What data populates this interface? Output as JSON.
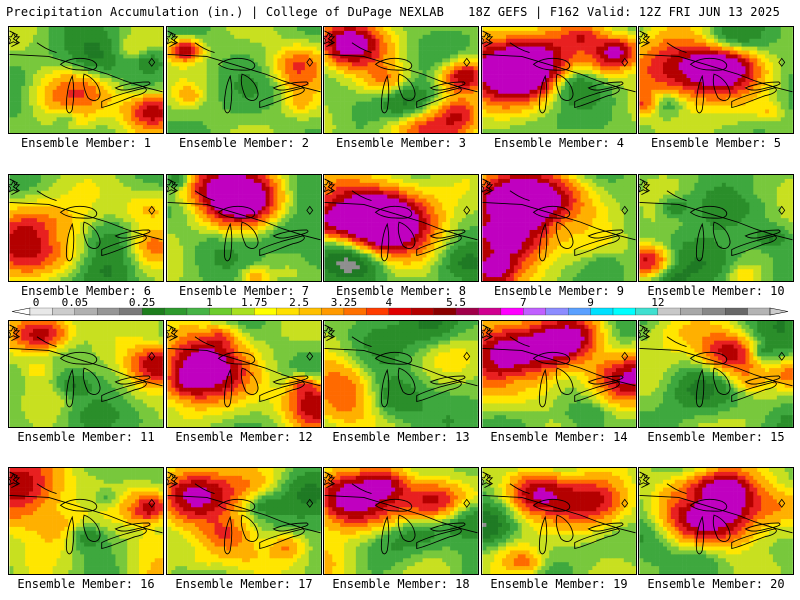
{
  "header": {
    "left_title": "Precipitation Accumulation (in.) | College of DuPage NEXLAB",
    "right_title": "18Z GEFS | F162 Valid: 12Z FRI JUN 13 2025"
  },
  "members": [
    {
      "label": "Ensemble Member: 1",
      "seed": 11,
      "hot": [
        [
          0.92,
          0.78,
          0.18
        ]
      ]
    },
    {
      "label": "Ensemble Member: 2",
      "seed": 23,
      "hot": [
        [
          0.1,
          0.2,
          0.1
        ]
      ]
    },
    {
      "label": "Ensemble Member: 3",
      "seed": 37,
      "hot": [
        [
          0.15,
          0.15,
          0.22
        ],
        [
          0.9,
          0.45,
          0.15
        ]
      ]
    },
    {
      "label": "Ensemble Member: 4",
      "seed": 41,
      "hot": [
        [
          0.1,
          0.4,
          0.35
        ],
        [
          0.3,
          0.35,
          0.25
        ],
        [
          0.85,
          0.2,
          0.15
        ]
      ]
    },
    {
      "label": "Ensemble Member: 5",
      "seed": 53,
      "hot": [
        [
          0.3,
          0.4,
          0.35
        ],
        [
          0.55,
          0.35,
          0.2
        ]
      ]
    },
    {
      "label": "Ensemble Member: 6",
      "seed": 61,
      "hot": [
        [
          0.15,
          0.6,
          0.3
        ]
      ]
    },
    {
      "label": "Ensemble Member: 7",
      "seed": 71,
      "hot": [
        [
          0.3,
          0.18,
          0.3
        ],
        [
          0.55,
          0.2,
          0.25
        ]
      ]
    },
    {
      "label": "Ensemble Member: 8",
      "seed": 83,
      "hot": [
        [
          0.25,
          0.4,
          0.35
        ],
        [
          0.4,
          0.45,
          0.3
        ]
      ]
    },
    {
      "label": "Ensemble Member: 9",
      "seed": 97,
      "hot": [
        [
          0.1,
          0.45,
          0.35
        ],
        [
          0.25,
          0.25,
          0.3
        ],
        [
          0.05,
          0.9,
          0.15
        ]
      ]
    },
    {
      "label": "Ensemble Member: 10",
      "seed": 101,
      "hot": [
        [
          0.05,
          0.8,
          0.15
        ]
      ]
    },
    {
      "label": "Ensemble Member: 11",
      "seed": 113,
      "hot": [
        [
          0.15,
          0.1,
          0.2
        ],
        [
          0.95,
          0.4,
          0.18
        ]
      ]
    },
    {
      "label": "Ensemble Member: 12",
      "seed": 127,
      "hot": [
        [
          0.2,
          0.35,
          0.25
        ],
        [
          0.95,
          0.75,
          0.2
        ]
      ]
    },
    {
      "label": "Ensemble Member: 13",
      "seed": 131,
      "hot": []
    },
    {
      "label": "Ensemble Member: 14",
      "seed": 139,
      "hot": [
        [
          0.15,
          0.3,
          0.35
        ],
        [
          0.5,
          0.2,
          0.2
        ],
        [
          0.95,
          0.5,
          0.25
        ]
      ]
    },
    {
      "label": "Ensemble Member: 15",
      "seed": 149,
      "hot": [
        [
          0.6,
          0.3,
          0.2
        ]
      ]
    },
    {
      "label": "Ensemble Member: 16",
      "seed": 151,
      "hot": [
        [
          0.03,
          0.15,
          0.3
        ],
        [
          0.9,
          0.35,
          0.15
        ]
      ]
    },
    {
      "label": "Ensemble Member: 17",
      "seed": 163,
      "hot": [
        [
          0.15,
          0.25,
          0.25
        ]
      ]
    },
    {
      "label": "Ensemble Member: 18",
      "seed": 173,
      "hot": [
        [
          0.15,
          0.25,
          0.25
        ],
        [
          0.7,
          0.3,
          0.2
        ]
      ]
    },
    {
      "label": "Ensemble Member: 19",
      "seed": 181,
      "hot": [
        [
          0.7,
          0.3,
          0.25
        ],
        [
          0.35,
          0.2,
          0.2
        ]
      ]
    },
    {
      "label": "Ensemble Member: 20",
      "seed": 191,
      "hot": [
        [
          0.4,
          0.4,
          0.3
        ],
        [
          0.55,
          0.2,
          0.2
        ]
      ]
    }
  ],
  "legend": {
    "tick_labels": [
      "0",
      "0.05",
      "0.25",
      "1",
      "1.75",
      "2.5",
      "3.25",
      "4",
      "5.5",
      "7",
      "9",
      "12"
    ],
    "colors": [
      "#e8e8e8",
      "#cccccc",
      "#b0b0b0",
      "#969696",
      "#7a7a7a",
      "#1e7e1e",
      "#2e9a2e",
      "#46b446",
      "#6ccc2e",
      "#a8e020",
      "#ffff00",
      "#ffe000",
      "#ffc000",
      "#ff9a00",
      "#ff7000",
      "#ff3c00",
      "#e00000",
      "#b40000",
      "#8a0000",
      "#a0004a",
      "#d00090",
      "#ff00ff",
      "#c060ff",
      "#8c8cff",
      "#5aa0ff",
      "#00e0ff",
      "#00ffff",
      "#40e0d0",
      "#c8c8c8",
      "#a8a8a8",
      "#888888",
      "#686868",
      "#b4b4b4"
    ],
    "units": "in."
  }
}
